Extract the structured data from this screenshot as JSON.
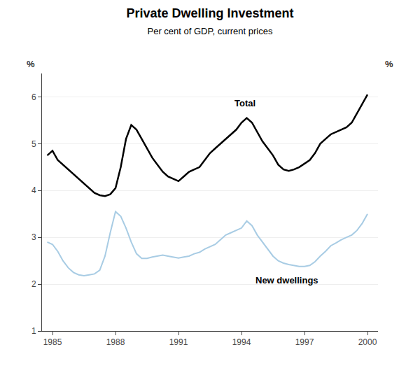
{
  "chart_data": {
    "type": "line",
    "title": "Private Dwelling Investment",
    "subtitle": "Per cent of GDP, current prices",
    "ylabel": "%",
    "y2label": "%",
    "xlim": [
      1984.5,
      2000.5
    ],
    "xticks": [
      1985,
      1988,
      1991,
      1994,
      1997,
      2000
    ],
    "ylim": [
      1,
      6.5
    ],
    "yticks": [
      1,
      2,
      3,
      4,
      5,
      6
    ],
    "y2lim": [
      1,
      6.5
    ],
    "y2ticks": [
      1,
      2,
      3,
      4,
      5,
      6
    ],
    "grid": "y",
    "x": [
      1984.75,
      1985.0,
      1985.25,
      1985.5,
      1985.75,
      1986.0,
      1986.25,
      1986.5,
      1986.75,
      1987.0,
      1987.25,
      1987.5,
      1987.75,
      1988.0,
      1988.25,
      1988.5,
      1988.75,
      1989.0,
      1989.25,
      1989.5,
      1989.75,
      1990.0,
      1990.25,
      1990.5,
      1990.75,
      1991.0,
      1991.25,
      1991.5,
      1991.75,
      1992.0,
      1992.25,
      1992.5,
      1992.75,
      1993.0,
      1993.25,
      1993.5,
      1993.75,
      1994.0,
      1994.25,
      1994.5,
      1994.75,
      1995.0,
      1995.25,
      1995.5,
      1995.75,
      1996.0,
      1996.25,
      1996.5,
      1996.75,
      1997.0,
      1997.25,
      1997.5,
      1997.75,
      1998.0,
      1998.25,
      1998.5,
      1998.75,
      1999.0,
      1999.25,
      1999.5,
      1999.75,
      2000.0
    ],
    "series": [
      {
        "name": "Total",
        "color": "#000000",
        "values": [
          4.75,
          4.85,
          4.65,
          4.55,
          4.45,
          4.35,
          4.25,
          4.15,
          4.05,
          3.95,
          3.9,
          3.88,
          3.92,
          4.05,
          4.5,
          5.1,
          5.4,
          5.3,
          5.1,
          4.9,
          4.7,
          4.55,
          4.4,
          4.3,
          4.25,
          4.2,
          4.3,
          4.4,
          4.45,
          4.5,
          4.65,
          4.8,
          4.9,
          5.0,
          5.1,
          5.2,
          5.3,
          5.45,
          5.55,
          5.45,
          5.25,
          5.05,
          4.9,
          4.75,
          4.55,
          4.45,
          4.42,
          4.45,
          4.5,
          4.58,
          4.65,
          4.8,
          5.0,
          5.1,
          5.2,
          5.25,
          5.3,
          5.35,
          5.45,
          5.65,
          5.85,
          6.05
        ]
      },
      {
        "name": "New dwellings",
        "color": "#a8cce4",
        "values": [
          2.9,
          2.85,
          2.7,
          2.5,
          2.35,
          2.25,
          2.2,
          2.18,
          2.2,
          2.22,
          2.3,
          2.6,
          3.1,
          3.55,
          3.45,
          3.2,
          2.9,
          2.65,
          2.55,
          2.55,
          2.58,
          2.6,
          2.62,
          2.6,
          2.58,
          2.56,
          2.58,
          2.6,
          2.65,
          2.68,
          2.75,
          2.8,
          2.85,
          2.95,
          3.05,
          3.1,
          3.15,
          3.2,
          3.35,
          3.25,
          3.05,
          2.9,
          2.75,
          2.6,
          2.5,
          2.45,
          2.42,
          2.4,
          2.38,
          2.38,
          2.4,
          2.48,
          2.6,
          2.7,
          2.82,
          2.88,
          2.95,
          3.0,
          3.05,
          3.15,
          3.3,
          3.5
        ]
      }
    ],
    "annotations": [
      {
        "text": "Total",
        "x": 1993.6,
        "y": 5.72
      },
      {
        "text": "New dwellings",
        "x": 1994.6,
        "y": 2.22
      }
    ]
  }
}
